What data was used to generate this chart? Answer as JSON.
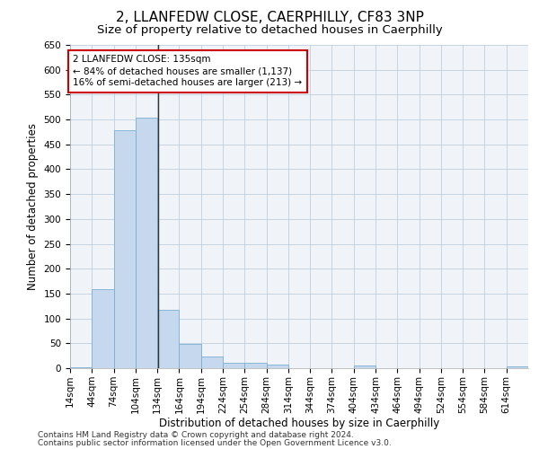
{
  "title": "2, LLANFEDW CLOSE, CAERPHILLY, CF83 3NP",
  "subtitle": "Size of property relative to detached houses in Caerphilly",
  "xlabel": "Distribution of detached houses by size in Caerphilly",
  "ylabel": "Number of detached properties",
  "bar_color": "#c5d8ed",
  "bar_edge_color": "#7aafd4",
  "vline_color": "#333333",
  "vline_x": 135,
  "annotation_text": "2 LLANFEDW CLOSE: 135sqm\n← 84% of detached houses are smaller (1,137)\n16% of semi-detached houses are larger (213) →",
  "annotation_box_color": "#ffffff",
  "annotation_box_edge_color": "#cc0000",
  "footnote1": "Contains HM Land Registry data © Crown copyright and database right 2024.",
  "footnote2": "Contains public sector information licensed under the Open Government Licence v3.0.",
  "bins": [
    14,
    44,
    74,
    104,
    134,
    164,
    194,
    224,
    254,
    284,
    314,
    344,
    374,
    404,
    434,
    464,
    494,
    524,
    554,
    584,
    614
  ],
  "counts": [
    2,
    158,
    478,
    504,
    118,
    48,
    23,
    11,
    11,
    8,
    0,
    0,
    0,
    5,
    0,
    0,
    0,
    0,
    0,
    0,
    3
  ],
  "ylim": [
    0,
    650
  ],
  "yticks": [
    0,
    50,
    100,
    150,
    200,
    250,
    300,
    350,
    400,
    450,
    500,
    550,
    600,
    650
  ],
  "background_color": "#f0f4f8",
  "plot_bg_color": "#f0f4f8",
  "title_fontsize": 11,
  "subtitle_fontsize": 9.5,
  "axis_label_fontsize": 8.5,
  "tick_fontsize": 7.5,
  "footnote_fontsize": 6.5
}
